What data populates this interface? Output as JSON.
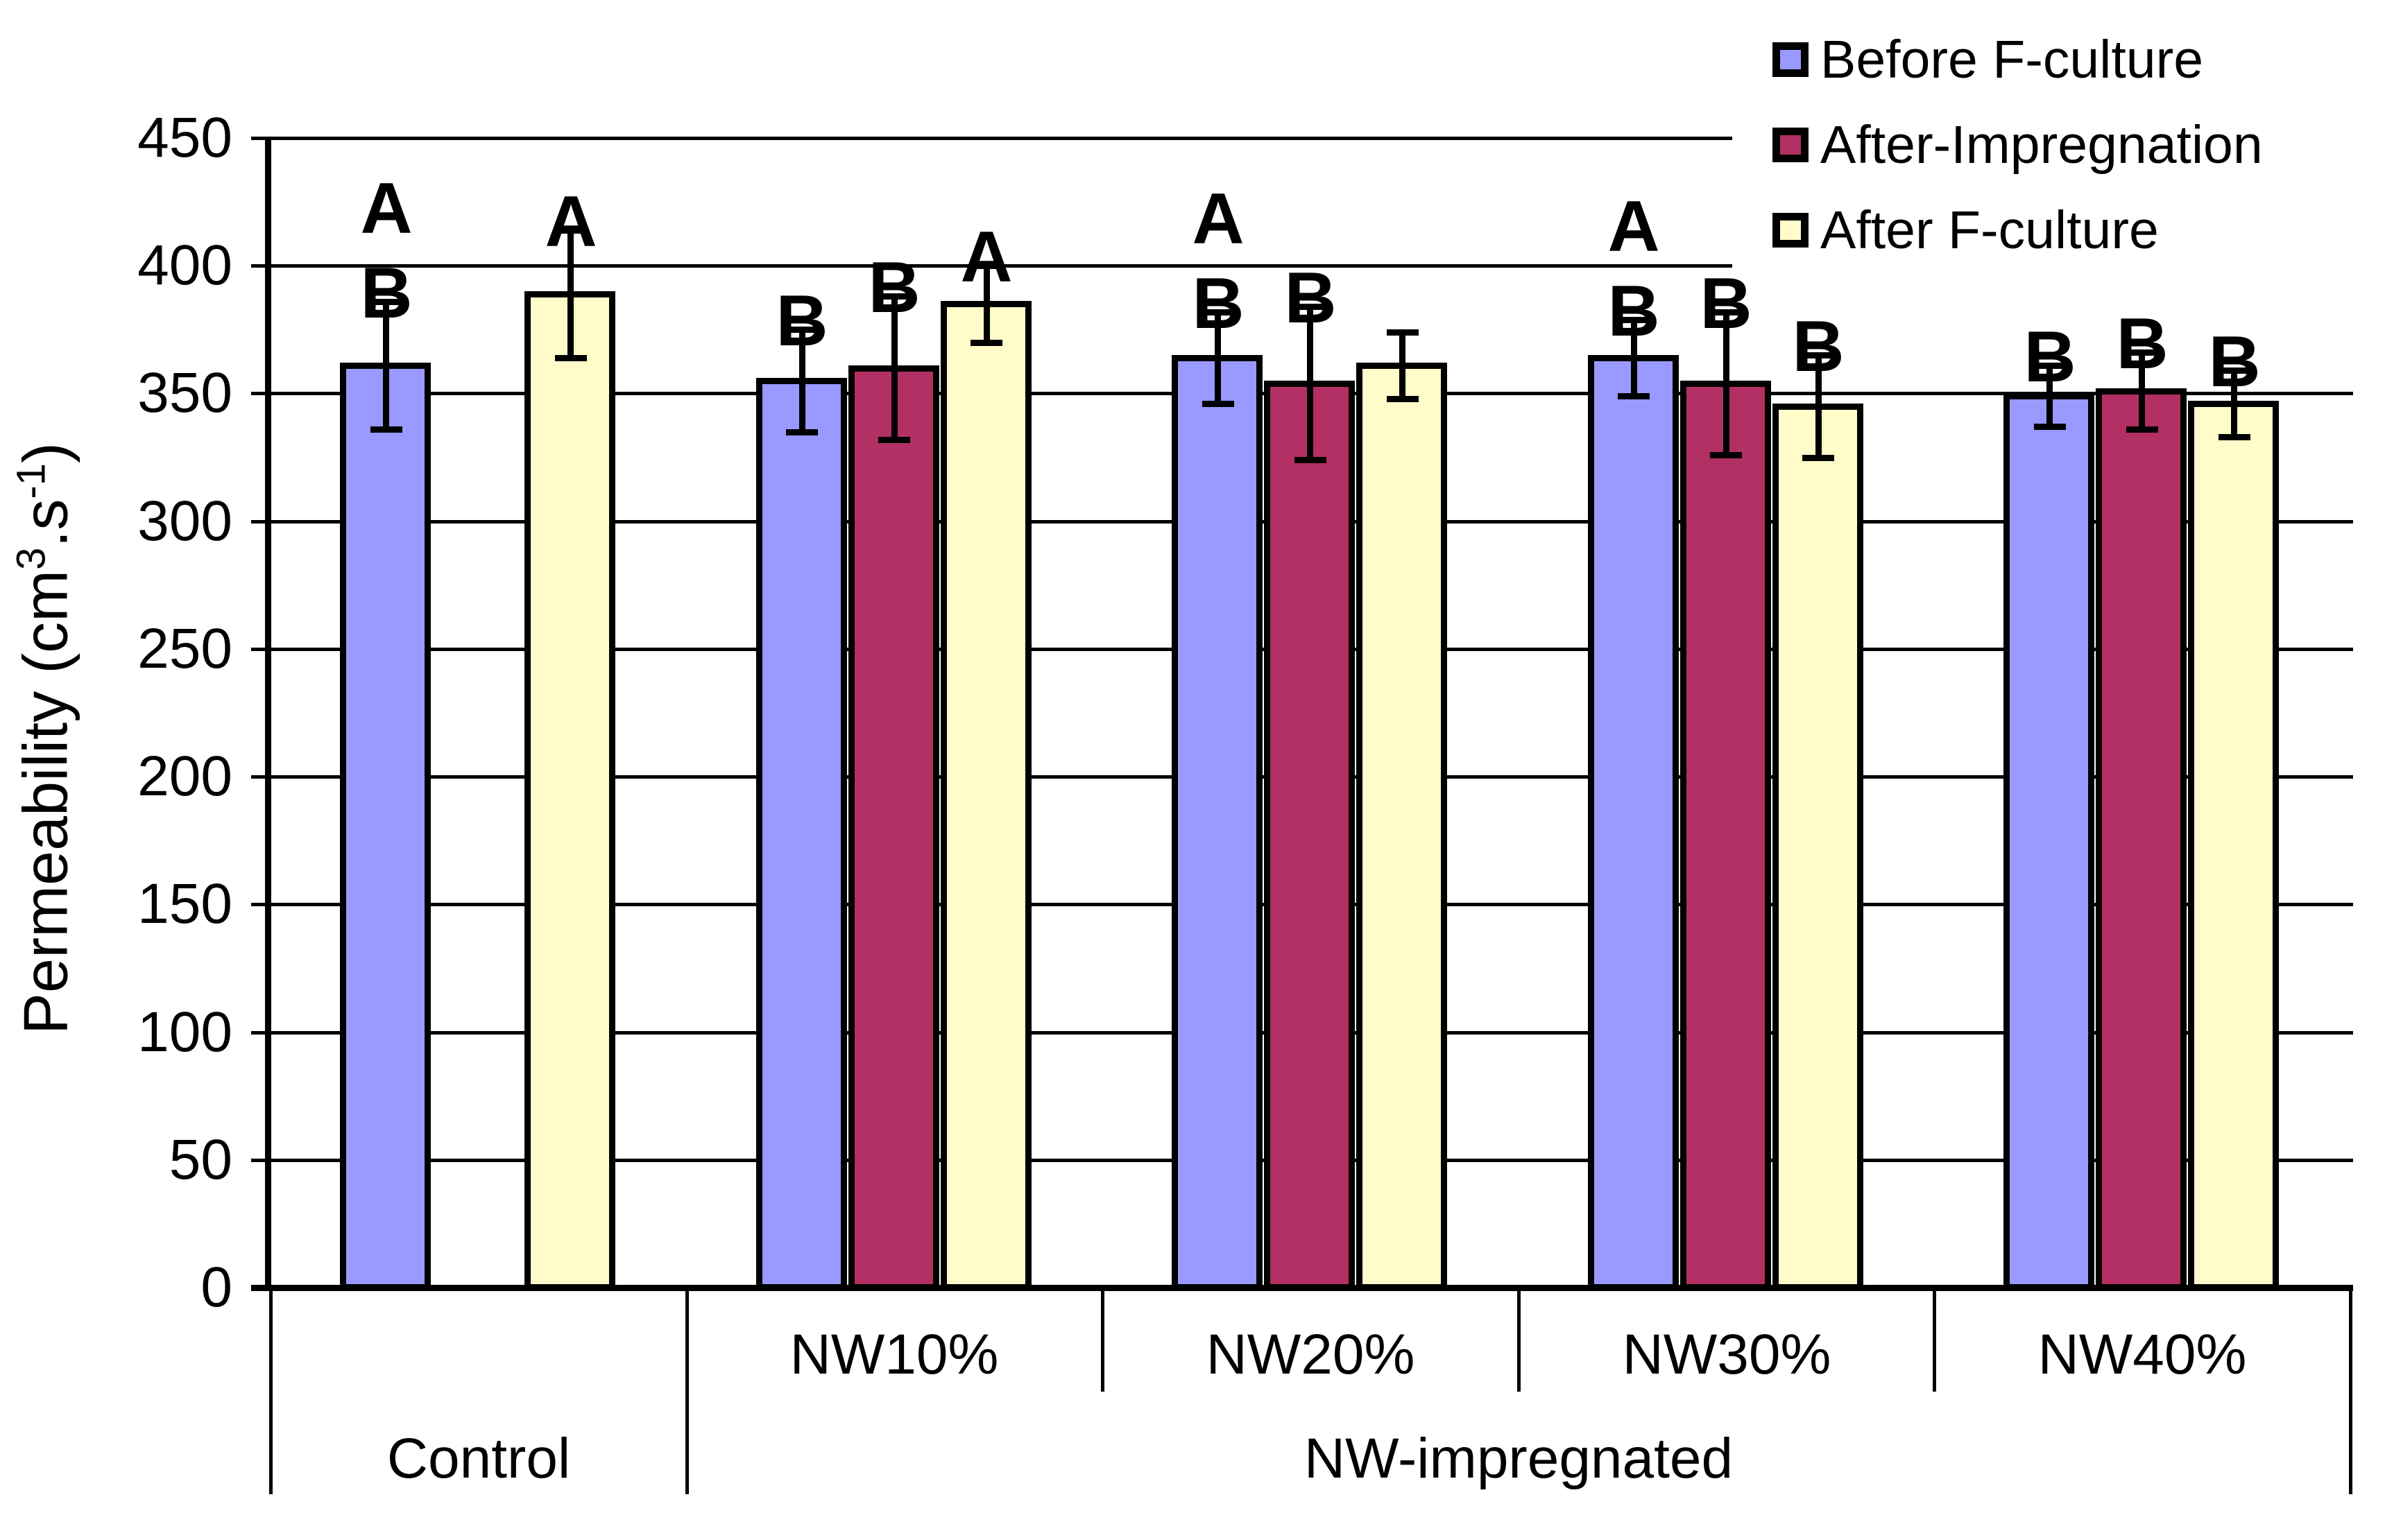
{
  "chart_data": {
    "type": "bar",
    "title": "",
    "ylabel": "Permeability (cm3.s-1)",
    "ylabel_parts": {
      "pre": "Permeability (cm",
      "sup1": "3",
      "mid": ".s",
      "sup2": "-1",
      "post": ")"
    },
    "ylim": [
      0,
      450
    ],
    "ystep": 50,
    "grid": true,
    "legend_position": "top-right",
    "axis_ticks": [
      "0",
      "50",
      "100",
      "150",
      "200",
      "250",
      "300",
      "350",
      "400",
      "450"
    ],
    "categories": [
      "Control",
      "NW10%",
      "NW20%",
      "NW30%",
      "NW40%"
    ],
    "group_labels": {
      "control": "Control",
      "impregnated": "NW-impregnated"
    },
    "series": [
      {
        "name": "Before F-culture",
        "color": "#9999FF",
        "values": [
          361,
          355,
          364,
          364,
          349
        ],
        "errors": [
          25,
          20,
          18,
          15,
          12
        ],
        "letters": [
          "AB",
          "B",
          "AB",
          "AB",
          "B"
        ]
      },
      {
        "name": "After-Impregnation",
        "color": "#B23063",
        "values": [
          null,
          360,
          354,
          354,
          351
        ],
        "errors": [
          null,
          28,
          30,
          28,
          15
        ],
        "letters": [
          "",
          "B",
          "B",
          "B",
          "B"
        ]
      },
      {
        "name": "After F-culture",
        "color": "#FFFCC9",
        "values": [
          389,
          385,
          361,
          345,
          346
        ],
        "errors": [
          25,
          15,
          13,
          20,
          13
        ],
        "letters": [
          "A",
          "A",
          "",
          "B",
          "B"
        ]
      }
    ]
  }
}
